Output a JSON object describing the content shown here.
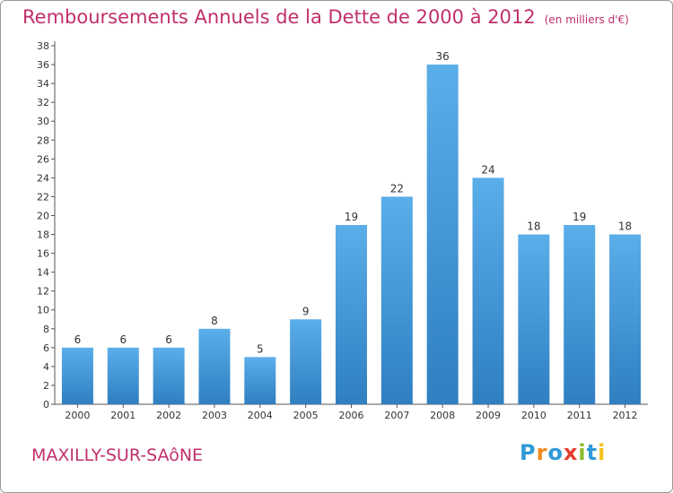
{
  "chart_data": {
    "type": "bar",
    "title": "Remboursements Annuels de la Dette de 2000 à 2012",
    "subtitle": "(en milliers d'€)",
    "categories": [
      "2000",
      "2001",
      "2002",
      "2003",
      "2004",
      "2005",
      "2006",
      "2007",
      "2008",
      "2009",
      "2010",
      "2011",
      "2012"
    ],
    "values": [
      6,
      6,
      6,
      8,
      5,
      9,
      19,
      22,
      36,
      24,
      18,
      19,
      18
    ],
    "ylim": [
      0,
      38
    ],
    "yticks": [
      0,
      2,
      4,
      6,
      8,
      10,
      12,
      14,
      16,
      18,
      20,
      22,
      24,
      26,
      28,
      30,
      32,
      34,
      36,
      38
    ],
    "grid": false,
    "bar_color": "#4a9fdd"
  },
  "footer": {
    "location": "MAXILLY-SUR-SAôNE",
    "brand": "Proxiti",
    "brand_colors": [
      "#2f9ad6",
      "#f08a1c",
      "#2f9ad6",
      "#e23d2e",
      "#8cbd2a",
      "#2f9ad6",
      "#f4c21a"
    ]
  }
}
